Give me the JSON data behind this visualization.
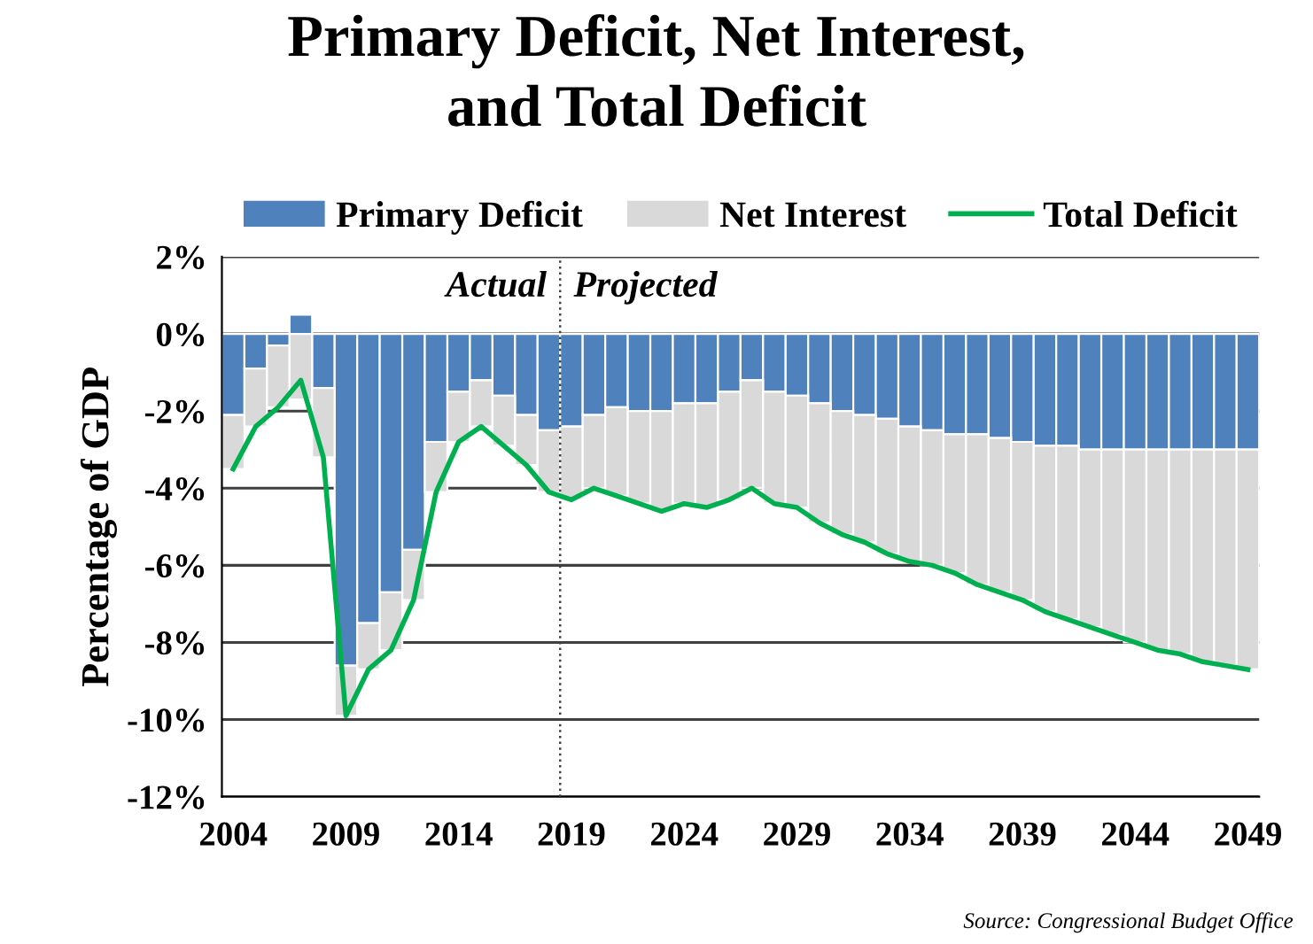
{
  "chart_data": {
    "type": "bar",
    "stacked": true,
    "title": "Primary Deficit, Net Interest,\nand Total Deficit",
    "ylabel": "Percentage of GDP",
    "x": [
      2004,
      2005,
      2006,
      2007,
      2008,
      2009,
      2010,
      2011,
      2012,
      2013,
      2014,
      2015,
      2016,
      2017,
      2018,
      2019,
      2020,
      2021,
      2022,
      2023,
      2024,
      2025,
      2026,
      2027,
      2028,
      2029,
      2030,
      2031,
      2032,
      2033,
      2034,
      2035,
      2036,
      2037,
      2038,
      2039,
      2040,
      2041,
      2042,
      2043,
      2044,
      2045,
      2046,
      2047,
      2048,
      2049
    ],
    "series": [
      {
        "name": "Primary Deficit",
        "color": "#4f81bd",
        "values": [
          -2.1,
          -0.9,
          -0.3,
          0.5,
          -1.4,
          -8.6,
          -7.5,
          -6.7,
          -5.6,
          -2.8,
          -1.5,
          -1.2,
          -1.6,
          -2.1,
          -2.5,
          -2.4,
          -2.1,
          -1.9,
          -2.0,
          -2.0,
          -1.8,
          -1.8,
          -1.5,
          -1.2,
          -1.5,
          -1.6,
          -1.8,
          -2.0,
          -2.1,
          -2.2,
          -2.4,
          -2.5,
          -2.6,
          -2.6,
          -2.7,
          -2.8,
          -2.9,
          -2.9,
          -3.0,
          -3.0,
          -3.0,
          -3.0,
          -3.0,
          -3.0,
          -3.0,
          -3.0
        ]
      },
      {
        "name": "Net Interest",
        "color": "#d9d9d9",
        "values": [
          -1.4,
          -1.5,
          -1.6,
          -1.7,
          -1.8,
          -1.3,
          -1.2,
          -1.5,
          -1.3,
          -1.3,
          -1.3,
          -1.2,
          -1.3,
          -1.3,
          -1.6,
          -1.9,
          -1.9,
          -2.3,
          -2.4,
          -2.6,
          -2.6,
          -2.7,
          -2.8,
          -2.8,
          -2.9,
          -2.9,
          -3.1,
          -3.2,
          -3.3,
          -3.5,
          -3.5,
          -3.5,
          -3.6,
          -3.9,
          -4.0,
          -4.1,
          -4.3,
          -4.5,
          -4.6,
          -4.8,
          -5.0,
          -5.2,
          -5.3,
          -5.5,
          -5.6,
          -5.7
        ]
      },
      {
        "name": "Total Deficit",
        "type": "line",
        "color": "#00b050",
        "values": [
          -3.5,
          -2.4,
          -1.9,
          -1.2,
          -3.2,
          -9.9,
          -8.7,
          -8.2,
          -6.9,
          -4.1,
          -2.8,
          -2.4,
          -2.9,
          -3.4,
          -4.1,
          -4.3,
          -4.0,
          -4.2,
          -4.4,
          -4.6,
          -4.4,
          -4.5,
          -4.3,
          -4.0,
          -4.4,
          -4.5,
          -4.9,
          -5.2,
          -5.4,
          -5.7,
          -5.9,
          -6.0,
          -6.2,
          -6.5,
          -6.7,
          -6.9,
          -7.2,
          -7.4,
          -7.6,
          -7.8,
          -8.0,
          -8.2,
          -8.3,
          -8.5,
          -8.6,
          -8.7
        ]
      }
    ],
    "xlim": [
      2003.5,
      2049.5
    ],
    "xticks": [
      2004,
      2009,
      2014,
      2019,
      2024,
      2029,
      2034,
      2039,
      2044,
      2049
    ],
    "ylim": [
      -12,
      2
    ],
    "yticks": [
      {
        "value": 2,
        "label": "2%"
      },
      {
        "value": 0,
        "label": "0%"
      },
      {
        "value": -2,
        "label": "-2%"
      },
      {
        "value": -4,
        "label": "-4%"
      },
      {
        "value": -6,
        "label": "-6%"
      },
      {
        "value": -8,
        "label": "-8%"
      },
      {
        "value": -10,
        "label": "-10%"
      },
      {
        "value": -12,
        "label": "-12%"
      }
    ],
    "grid": "y",
    "legend": "top",
    "marker": "none",
    "line_style": "solid",
    "ref_lines": [
      {
        "axis": "x",
        "value": 2018.5,
        "line_style": "dotted",
        "color": "#404040"
      }
    ],
    "annotations": [
      "Actual",
      "Projected",
      "Source: Congressional Budget Office"
    ]
  }
}
